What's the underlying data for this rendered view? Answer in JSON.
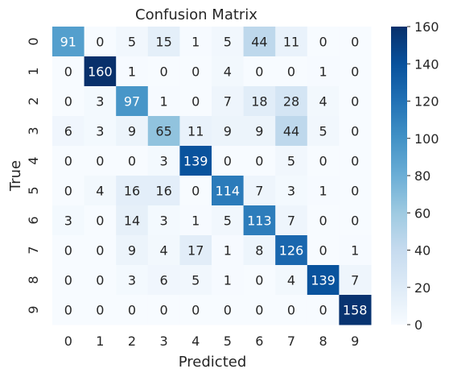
{
  "chart_data": {
    "type": "heatmap",
    "title": "Confusion Matrix",
    "xlabel": "Predicted",
    "ylabel": "True",
    "x_categories": [
      "0",
      "1",
      "2",
      "3",
      "4",
      "5",
      "6",
      "7",
      "8",
      "9"
    ],
    "y_categories": [
      "0",
      "1",
      "2",
      "3",
      "4",
      "5",
      "6",
      "7",
      "8",
      "9"
    ],
    "matrix": [
      [
        91,
        0,
        5,
        15,
        1,
        5,
        44,
        11,
        0,
        0
      ],
      [
        0,
        160,
        1,
        0,
        0,
        4,
        0,
        0,
        1,
        0
      ],
      [
        0,
        3,
        97,
        1,
        0,
        7,
        18,
        28,
        4,
        0
      ],
      [
        6,
        3,
        9,
        65,
        11,
        9,
        9,
        44,
        5,
        0
      ],
      [
        0,
        0,
        0,
        3,
        139,
        0,
        0,
        5,
        0,
        0
      ],
      [
        0,
        4,
        16,
        16,
        0,
        114,
        7,
        3,
        1,
        0
      ],
      [
        3,
        0,
        14,
        3,
        1,
        5,
        113,
        7,
        0,
        0
      ],
      [
        0,
        0,
        9,
        4,
        17,
        1,
        8,
        126,
        0,
        1
      ],
      [
        0,
        0,
        3,
        6,
        5,
        1,
        0,
        4,
        139,
        7
      ],
      [
        0,
        0,
        0,
        0,
        0,
        0,
        0,
        0,
        0,
        158
      ]
    ],
    "colormap": "Blues",
    "colorbar": {
      "range": [
        0,
        160
      ],
      "ticks": [
        0,
        20,
        40,
        60,
        80,
        100,
        120,
        140,
        160
      ]
    }
  }
}
